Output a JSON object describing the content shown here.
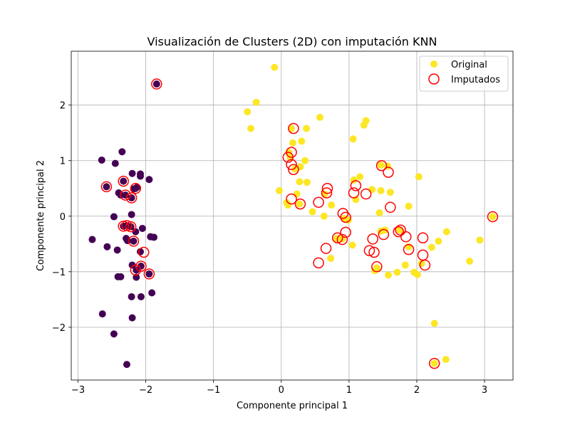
{
  "chart_data": {
    "type": "scatter",
    "title": "Visualización de Clusters (2D) con imputación KNN",
    "xlabel": "Componente principal 1",
    "ylabel": "Componente principal 2",
    "xlim": [
      -3.1,
      3.42
    ],
    "ylim": [
      -2.95,
      2.97
    ],
    "xticks": [
      -3,
      -2,
      -1,
      0,
      1,
      2,
      3
    ],
    "xtick_labels": [
      "−3",
      "−2",
      "−1",
      "0",
      "1",
      "2",
      "3"
    ],
    "yticks": [
      -2,
      -1,
      0,
      1,
      2
    ],
    "ytick_labels": [
      "−2",
      "−1",
      "0",
      "1",
      "2"
    ],
    "grid": true,
    "legend_position": "top-right",
    "colors": {
      "cluster_0": "#440154",
      "cluster_1": "#fde725",
      "imputed_edge": "#ff0000",
      "grid": "#b0b0b0",
      "axes": "#000000"
    },
    "series": [
      {
        "name": "Original",
        "marker": "filled-circle",
        "clusters": [
          {
            "cluster": 0,
            "points": [
              [
                -2.65,
                1.01
              ],
              [
                -2.45,
                0.95
              ],
              [
                -2.35,
                1.16
              ],
              [
                -2.33,
                0.63
              ],
              [
                -2.2,
                0.77
              ],
              [
                -2.08,
                0.72
              ],
              [
                -2.08,
                0.76
              ],
              [
                -1.95,
                0.66
              ],
              [
                -2.58,
                0.53
              ],
              [
                -2.4,
                0.42
              ],
              [
                -2.37,
                0.38
              ],
              [
                -2.3,
                0.38
              ],
              [
                -2.21,
                0.33
              ],
              [
                -2.15,
                0.5
              ],
              [
                -2.13,
                0.52
              ],
              [
                -2.18,
                0.49
              ],
              [
                -2.47,
                -0.01
              ],
              [
                -2.33,
                -0.18
              ],
              [
                -2.28,
                -0.17
              ],
              [
                -2.21,
                0.03
              ],
              [
                -2.22,
                -0.19
              ],
              [
                -2.15,
                -0.28
              ],
              [
                -2.05,
                -0.22
              ],
              [
                -1.88,
                -0.38
              ],
              [
                -1.93,
                -0.37
              ],
              [
                -2.29,
                -0.4
              ],
              [
                -2.18,
                -0.45
              ],
              [
                -2.08,
                -0.64
              ],
              [
                -2.79,
                -0.42
              ],
              [
                -2.57,
                -0.55
              ],
              [
                -2.42,
                -0.61
              ],
              [
                -2.27,
                -0.44
              ],
              [
                -2.2,
                -0.88
              ],
              [
                -2.14,
                -0.97
              ],
              [
                -2.07,
                -0.9
              ],
              [
                -2.41,
                -1.09
              ],
              [
                -2.37,
                -1.09
              ],
              [
                -2.14,
                -1.1
              ],
              [
                -1.95,
                -1.04
              ],
              [
                -2.21,
                -1.45
              ],
              [
                -2.07,
                -1.45
              ],
              [
                -1.91,
                -1.38
              ],
              [
                -2.64,
                -1.76
              ],
              [
                -2.2,
                -1.83
              ],
              [
                -2.47,
                -2.12
              ],
              [
                -2.28,
                -2.67
              ],
              [
                -1.84,
                2.38
              ]
            ]
          },
          {
            "cluster": 1,
            "points": [
              [
                -0.1,
                2.68
              ],
              [
                -0.37,
                2.05
              ],
              [
                -0.5,
                1.88
              ],
              [
                -0.45,
                1.58
              ],
              [
                0.57,
                1.78
              ],
              [
                1.25,
                1.72
              ],
              [
                1.22,
                1.64
              ],
              [
                1.06,
                1.39
              ],
              [
                0.15,
                1.58
              ],
              [
                0.37,
                1.58
              ],
              [
                0.17,
                1.32
              ],
              [
                0.3,
                1.35
              ],
              [
                0.13,
                1.06
              ],
              [
                0.35,
                1.0
              ],
              [
                0.28,
                0.89
              ],
              [
                0.2,
                0.85
              ],
              [
                0.11,
                1.15
              ],
              [
                0.27,
                0.62
              ],
              [
                0.38,
                0.61
              ],
              [
                -0.03,
                0.46
              ],
              [
                0.23,
                0.4
              ],
              [
                0.64,
                0.4
              ],
              [
                1.07,
                0.65
              ],
              [
                1.16,
                0.71
              ],
              [
                1.57,
                0.9
              ],
              [
                1.47,
                0.92
              ],
              [
                2.03,
                0.71
              ],
              [
                0.08,
                0.24
              ],
              [
                0.1,
                0.2
              ],
              [
                0.27,
                0.22
              ],
              [
                0.46,
                0.08
              ],
              [
                0.63,
                0.0
              ],
              [
                0.74,
                0.2
              ],
              [
                1.1,
                0.3
              ],
              [
                1.34,
                0.48
              ],
              [
                1.47,
                0.46
              ],
              [
                1.61,
                0.43
              ],
              [
                1.88,
                0.18
              ],
              [
                1.45,
                0.06
              ],
              [
                0.93,
                -0.04
              ],
              [
                0.99,
                -0.07
              ],
              [
                1.47,
                -0.27
              ],
              [
                1.53,
                -0.25
              ],
              [
                1.75,
                -0.25
              ],
              [
                2.44,
                -0.28
              ],
              [
                2.32,
                -0.45
              ],
              [
                2.22,
                -0.56
              ],
              [
                2.93,
                -0.43
              ],
              [
                0.82,
                -0.4
              ],
              [
                0.9,
                -0.41
              ],
              [
                1.05,
                -0.52
              ],
              [
                0.73,
                -0.76
              ],
              [
                1.88,
                -0.55
              ],
              [
                1.83,
                -0.88
              ],
              [
                2.07,
                -0.85
              ],
              [
                2.78,
                -0.81
              ],
              [
                1.38,
                -0.98
              ],
              [
                1.41,
                -0.93
              ],
              [
                1.58,
                -1.06
              ],
              [
                1.71,
                -1.01
              ],
              [
                1.96,
                -1.01
              ],
              [
                2.01,
                -1.05
              ],
              [
                2.26,
                -1.93
              ],
              [
                2.43,
                -2.58
              ],
              [
                2.26,
                -2.65
              ],
              [
                3.12,
                -0.01
              ]
            ]
          }
        ]
      },
      {
        "name": "Imputados",
        "marker": "hollow-circle",
        "points": [
          [
            -1.84,
            2.38
          ],
          [
            -2.58,
            0.53
          ],
          [
            -2.33,
            0.63
          ],
          [
            -2.3,
            0.38
          ],
          [
            -2.21,
            0.33
          ],
          [
            -2.15,
            0.5
          ],
          [
            -2.33,
            -0.18
          ],
          [
            -2.28,
            -0.17
          ],
          [
            -2.22,
            -0.19
          ],
          [
            -2.18,
            -0.45
          ],
          [
            -2.03,
            -0.65
          ],
          [
            -2.15,
            -0.97
          ],
          [
            -2.07,
            -0.9
          ],
          [
            -1.95,
            -1.04
          ],
          [
            0.18,
            1.58
          ],
          [
            0.15,
            1.15
          ],
          [
            0.1,
            1.06
          ],
          [
            0.15,
            0.93
          ],
          [
            0.18,
            0.84
          ],
          [
            0.15,
            0.31
          ],
          [
            0.28,
            0.22
          ],
          [
            0.55,
            0.25
          ],
          [
            0.67,
            0.42
          ],
          [
            0.68,
            0.5
          ],
          [
            0.91,
            0.05
          ],
          [
            0.95,
            -0.02
          ],
          [
            0.83,
            -0.39
          ],
          [
            0.9,
            -0.42
          ],
          [
            0.95,
            -0.29
          ],
          [
            0.66,
            -0.58
          ],
          [
            0.55,
            -0.84
          ],
          [
            1.07,
            0.42
          ],
          [
            1.1,
            0.55
          ],
          [
            1.25,
            0.4
          ],
          [
            1.48,
            0.91
          ],
          [
            1.58,
            0.79
          ],
          [
            1.61,
            0.16
          ],
          [
            1.51,
            -0.33
          ],
          [
            1.35,
            -0.41
          ],
          [
            1.3,
            -0.62
          ],
          [
            1.37,
            -0.65
          ],
          [
            1.41,
            -0.91
          ],
          [
            1.73,
            -0.28
          ],
          [
            1.76,
            -0.25
          ],
          [
            1.84,
            -0.37
          ],
          [
            1.88,
            -0.6
          ],
          [
            2.09,
            -0.39
          ],
          [
            2.09,
            -0.7
          ],
          [
            2.12,
            -0.88
          ],
          [
            2.26,
            -2.65
          ],
          [
            3.12,
            -0.01
          ]
        ]
      }
    ]
  }
}
